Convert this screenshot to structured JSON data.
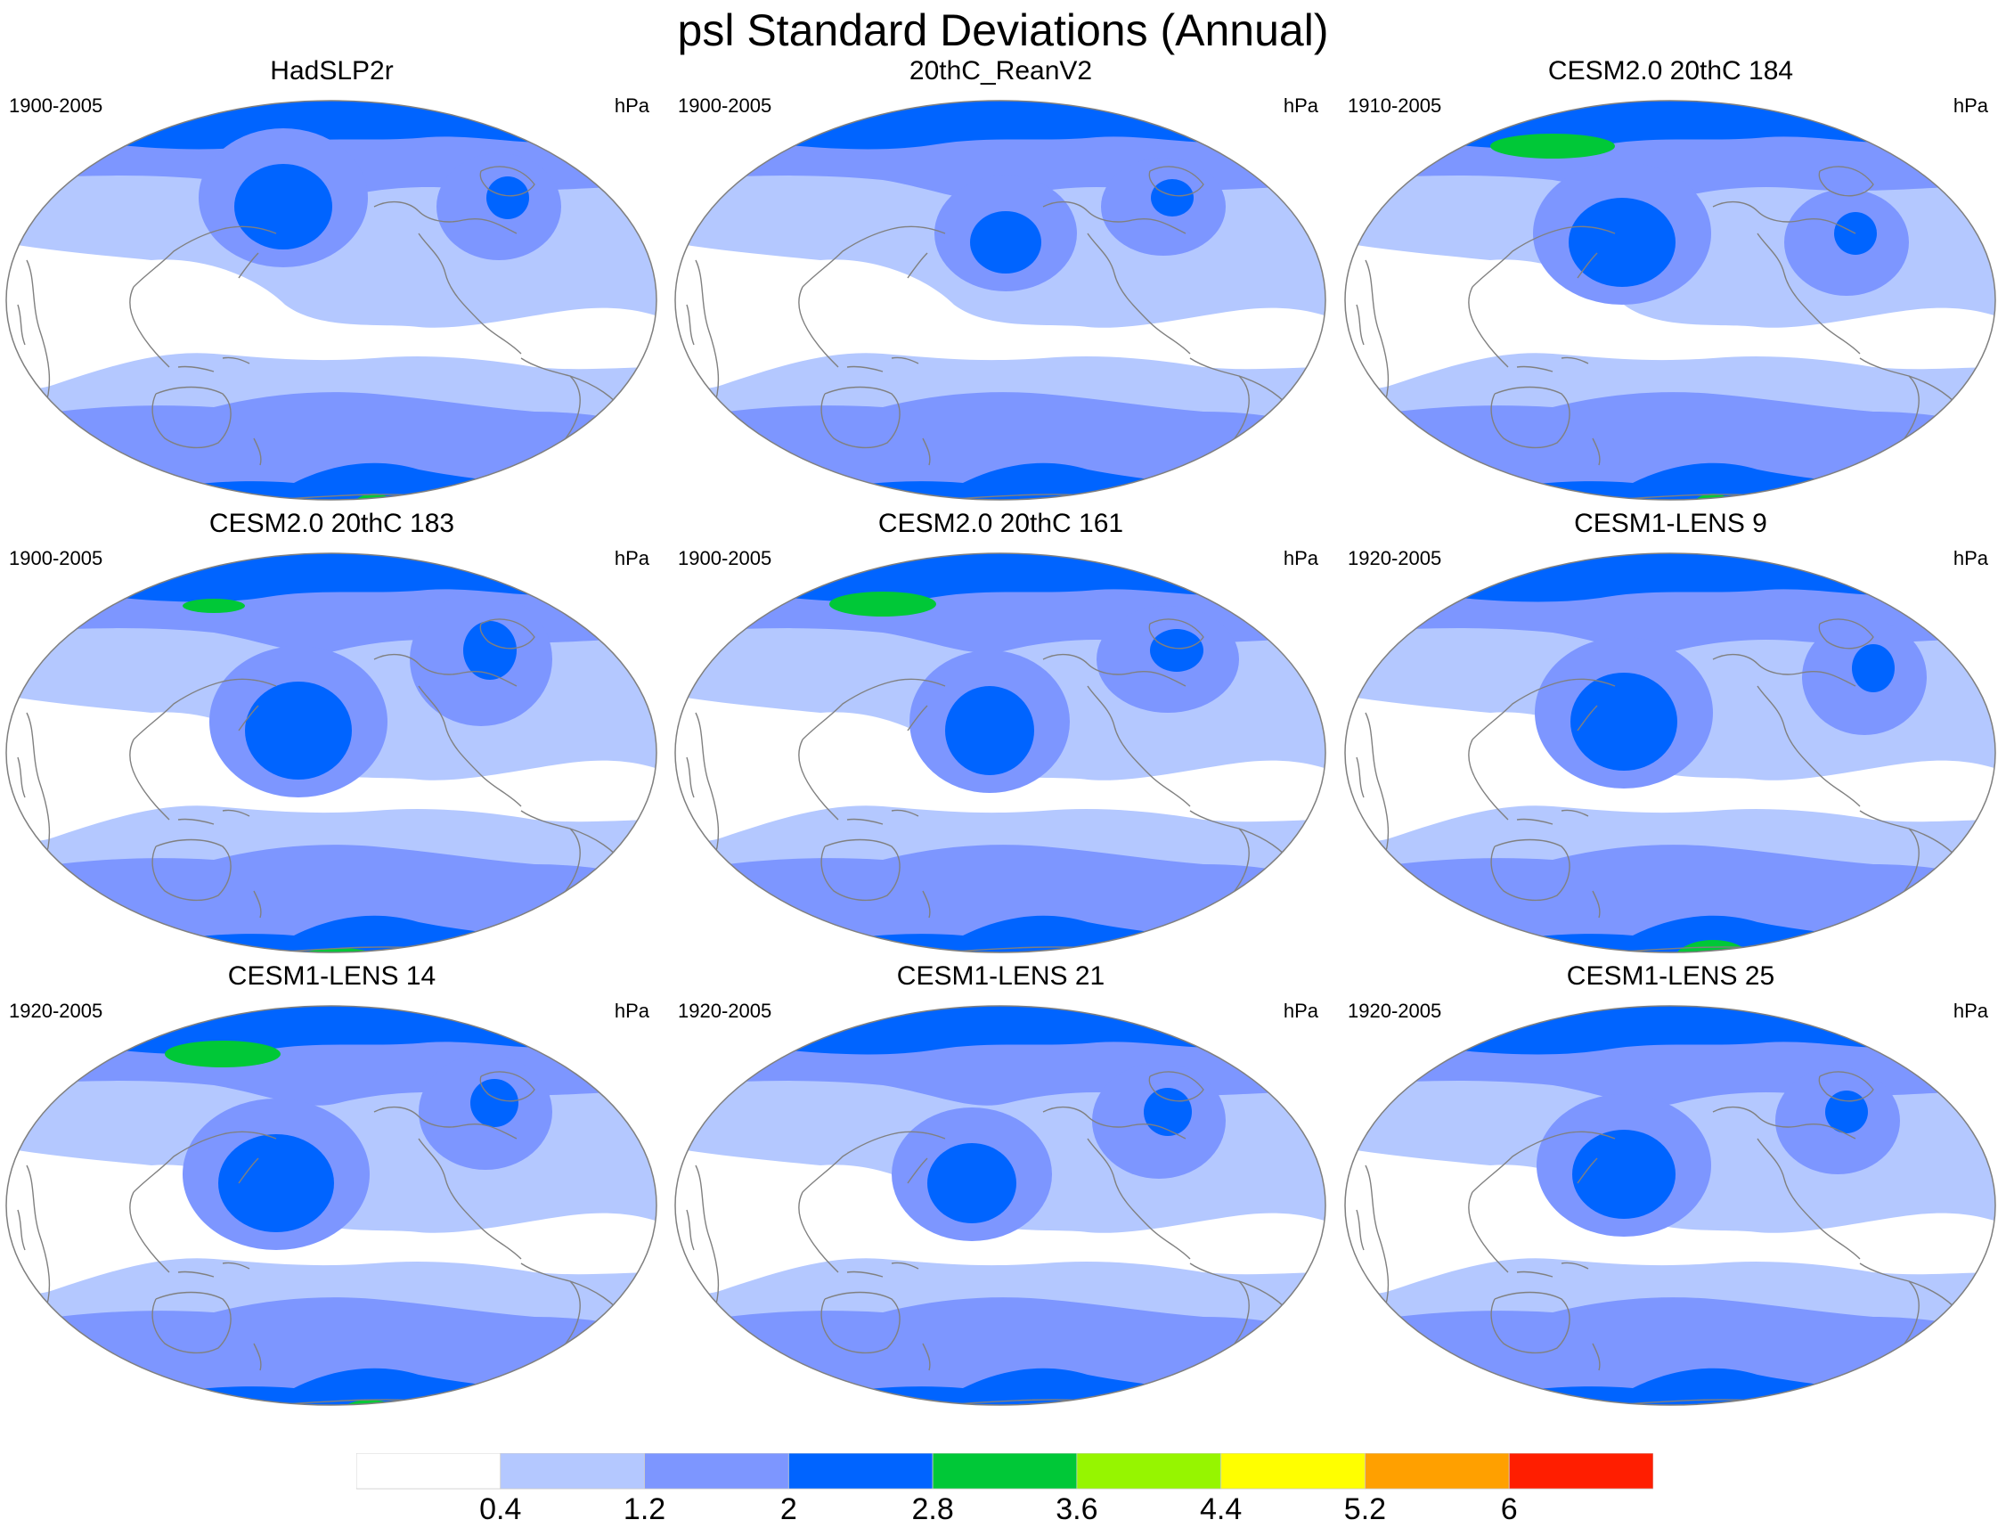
{
  "figure": {
    "title": "psl Standard Deviations (Annual)"
  },
  "panels": [
    {
      "title": "HadSLP2r",
      "period": "1900-2005",
      "unit": "hPa"
    },
    {
      "title": "20thC_ReanV2",
      "period": "1900-2005",
      "unit": "hPa"
    },
    {
      "title": "CESM2.0 20thC 184",
      "period": "1910-2005",
      "unit": "hPa"
    },
    {
      "title": "CESM2.0 20thC 183",
      "period": "1900-2005",
      "unit": "hPa"
    },
    {
      "title": "CESM2.0 20thC 161",
      "period": "1900-2005",
      "unit": "hPa"
    },
    {
      "title": "CESM1-LENS 9",
      "period": "1920-2005",
      "unit": "hPa"
    },
    {
      "title": "CESM1-LENS 14",
      "period": "1920-2005",
      "unit": "hPa"
    },
    {
      "title": "CESM1-LENS 21",
      "period": "1920-2005",
      "unit": "hPa"
    },
    {
      "title": "CESM1-LENS 25",
      "period": "1920-2005",
      "unit": "hPa"
    }
  ],
  "colorbar": {
    "levels": [
      "0.4",
      "1.2",
      "2",
      "2.8",
      "3.6",
      "4.4",
      "5.2",
      "6"
    ],
    "colors": [
      "#ffffff",
      "#b4c8ff",
      "#7d96ff",
      "#0064ff",
      "#00c837",
      "#96f500",
      "#ffff00",
      "#ffa000",
      "#ff1e00"
    ]
  },
  "colors": {
    "land_outline": "#808080",
    "map_border": "#7f7f7f"
  }
}
